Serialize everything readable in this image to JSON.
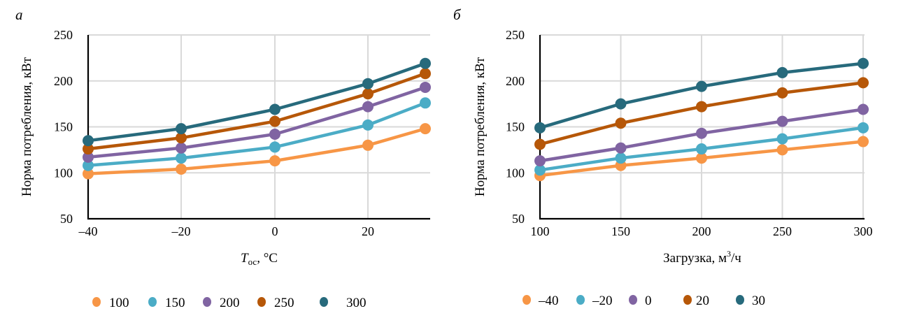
{
  "chart_data": [
    {
      "panel_label": "а",
      "type": "line",
      "title": "",
      "xlabel_main": "T",
      "xlabel_sub": "ос",
      "xlabel_rest": ", °C",
      "ylabel": "Норма потребления, кВт",
      "x": [
        -40,
        -20,
        0,
        20,
        30
      ],
      "x_ticks": [
        "–40",
        "–20",
        "0",
        "20"
      ],
      "x_tick_values": [
        -40,
        -20,
        0,
        20
      ],
      "xlim": [
        -40,
        30
      ],
      "ylim": [
        50,
        250
      ],
      "y_ticks": [
        50,
        100,
        150,
        200,
        250
      ],
      "grid": true,
      "legend_position": "bottom",
      "series": [
        {
          "name": "100",
          "color": "#F79646",
          "values": [
            99,
            104,
            113,
            130,
            148
          ]
        },
        {
          "name": "150",
          "color": "#4BACC6",
          "values": [
            108,
            116,
            128,
            152,
            176
          ]
        },
        {
          "name": "200",
          "color": "#8064A2",
          "values": [
            117,
            127,
            142,
            172,
            193
          ]
        },
        {
          "name": "250",
          "color": "#B65708",
          "values": [
            126,
            138,
            156,
            186,
            208
          ]
        },
        {
          "name": "300",
          "color": "#276A7C",
          "values": [
            135,
            148,
            169,
            197,
            219
          ]
        }
      ]
    },
    {
      "panel_label": "б",
      "type": "line",
      "title": "",
      "xlabel_main": "Загрузка, м",
      "xlabel_sup": "3",
      "xlabel_rest": "/ч",
      "ylabel": "Норма потребления, кВт",
      "x": [
        100,
        150,
        200,
        250,
        300
      ],
      "x_ticks": [
        "100",
        "150",
        "200",
        "250",
        "300"
      ],
      "x_tick_values": [
        100,
        150,
        200,
        250,
        300
      ],
      "xlim": [
        100,
        300
      ],
      "ylim": [
        50,
        250
      ],
      "y_ticks": [
        50,
        100,
        150,
        200,
        250
      ],
      "grid": true,
      "legend_position": "bottom",
      "series": [
        {
          "name": "–40",
          "color": "#F79646",
          "values": [
            97,
            108,
            116,
            125,
            134
          ]
        },
        {
          "name": "–20",
          "color": "#4BACC6",
          "values": [
            103,
            116,
            126,
            137,
            149
          ]
        },
        {
          "name": "0",
          "color": "#8064A2",
          "values": [
            113,
            127,
            143,
            156,
            169
          ]
        },
        {
          "name": "20",
          "color": "#B65708",
          "values": [
            131,
            154,
            172,
            187,
            198
          ]
        },
        {
          "name": "30",
          "color": "#276A7C",
          "values": [
            149,
            175,
            194,
            209,
            219
          ]
        }
      ]
    }
  ]
}
